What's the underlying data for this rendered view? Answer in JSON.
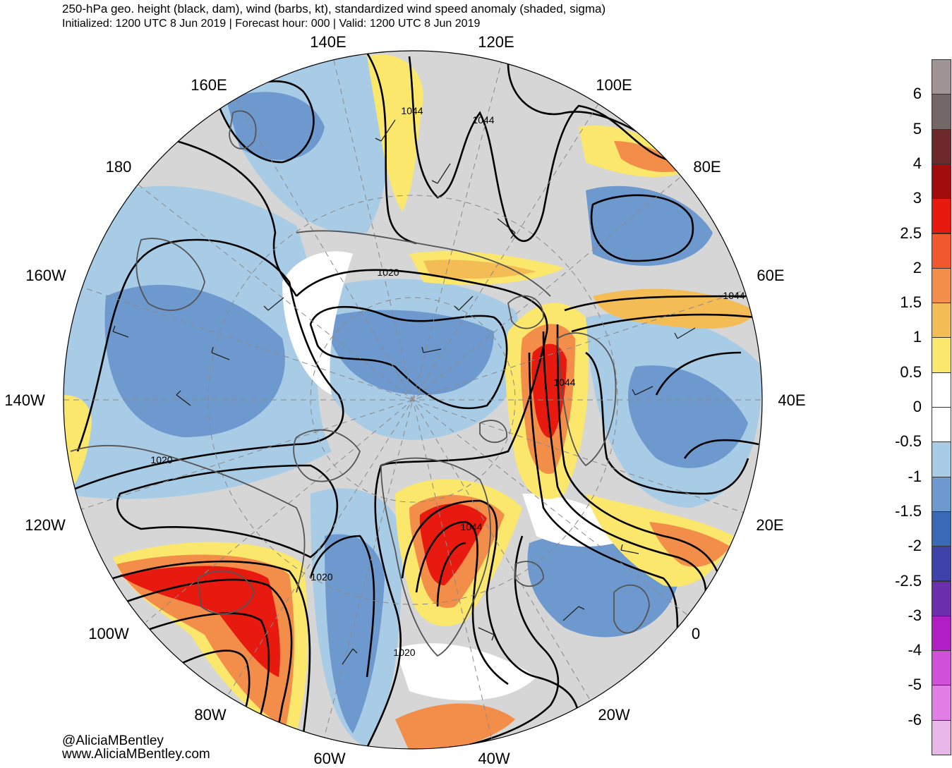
{
  "header": {
    "title": "250-hPa geo. height (black, dam), wind (barbs, kt), standardized wind speed anomaly (shaded, sigma)",
    "subtitle": "Initialized: 1200 UTC 8 Jun 2019 | Forecast hour: 000 | Valid: 1200 UTC 8 Jun 2019"
  },
  "map": {
    "projection": "north-polar-stereographic",
    "longitude_labels": [
      "140E",
      "120E",
      "160E",
      "100E",
      "180",
      "80E",
      "160W",
      "60E",
      "140W",
      "40E",
      "120W",
      "20E",
      "100W",
      "0",
      "80W",
      "20W",
      "60W",
      "40W"
    ],
    "contour_labels": [
      "1044",
      "1044",
      "1020",
      "1044",
      "1044",
      "1020",
      "1044",
      "1020",
      "1020"
    ],
    "colors": {
      "anomaly_positive_strong": "#e8190f",
      "anomaly_positive_mid": "#f08a4a",
      "anomaly_positive_weak": "#f9e46a",
      "anomaly_negative_weak": "#a8cbe6",
      "anomaly_negative_mid": "#6e99cf",
      "anomaly_negative_strong": "#3a69b6",
      "background_gray": "#d0d0d0",
      "land_outline": "#505050",
      "height_contour": "#000000"
    }
  },
  "colorbar": {
    "units": "sigma",
    "colors": [
      "#a19494",
      "#736767",
      "#6e2a2a",
      "#a30c0c",
      "#e8190f",
      "#f2582e",
      "#f28d4a",
      "#f4bc55",
      "#fbe76c",
      "#ffffff",
      "#ffffff",
      "#a8cbe6",
      "#6e99cf",
      "#3a69b6",
      "#3d43a8",
      "#6b2fad",
      "#b01fc3",
      "#d050d8",
      "#e07ee5",
      "#e9b6e8"
    ],
    "labels": [
      "6",
      "5",
      "4",
      "3",
      "2.5",
      "2",
      "1.5",
      "1",
      "0.5",
      "0",
      "-0.5",
      "-1",
      "-1.5",
      "-2",
      "-2.5",
      "-3",
      "-4",
      "-5",
      "-6"
    ]
  },
  "credits": {
    "handle": "@AliciaMBentley",
    "website": "www.AliciaMBentley.com"
  }
}
